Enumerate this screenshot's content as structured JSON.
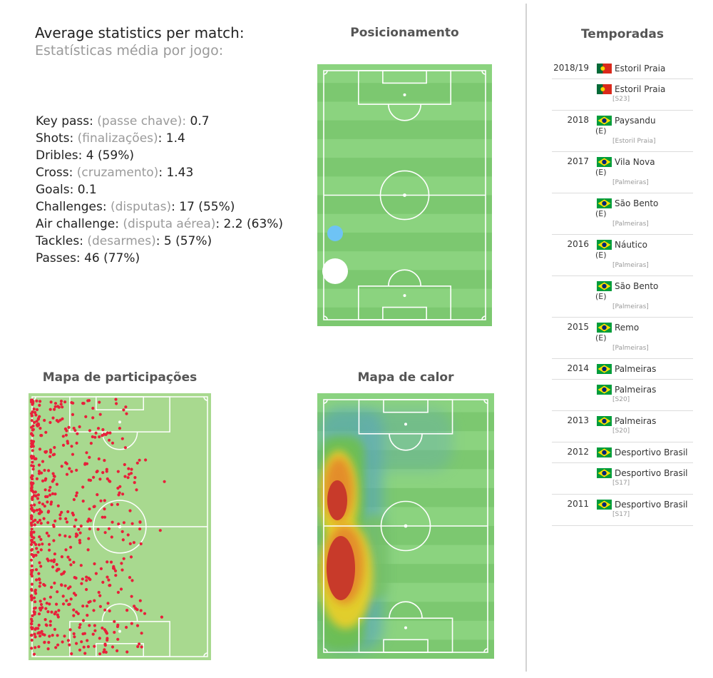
{
  "stats": {
    "title": "Average statistics per match:",
    "subtitle": "Estatísticas média por jogo:",
    "items": [
      {
        "label": "Key pass:",
        "pt": "(passe chave):",
        "value": " 0.7"
      },
      {
        "label": "Shots:",
        "pt": "(finalizações)",
        "value": ": 1.4"
      },
      {
        "label": "Dribles:",
        "pt": "",
        "value": "4 (59%)"
      },
      {
        "label": "Cross:",
        "pt": "(cruzamento)",
        "value": ": 1.43"
      },
      {
        "label": "Goals:",
        "pt": "",
        "value": "0.1"
      },
      {
        "label": "Challenges:",
        "pt": "(disputas)",
        "value": ": 17 (55%)"
      },
      {
        "label": "Air challenge:",
        "pt": "(disputa aérea)",
        "value": ":  2.2 (63%)"
      },
      {
        "label": "Tackles:",
        "pt": "(desarmes)",
        "value": ": 5 (57%)"
      },
      {
        "label": "Passes:",
        "pt": "",
        "value": " 46 (77%)"
      }
    ]
  },
  "sections": {
    "positioning": "Posicionamento",
    "participations": "Mapa de participações",
    "heatmap": "Mapa de calor",
    "seasons": "Temporadas"
  },
  "colors": {
    "pitch_light": "#8bd37f",
    "pitch_dark": "#7cc870",
    "plain_pitch": "#a8d98f",
    "dot_red": "#e8203a",
    "pos_blue": "#6ec3f5",
    "pos_white": "#ffffff",
    "portugal_green": "#046a38",
    "portugal_red": "#da291c",
    "brazil_green": "#009c3b",
    "brazil_yellow": "#ffdf00",
    "brazil_blue": "#002776"
  },
  "seasons": [
    {
      "year": "2018/19",
      "flag": "portugal-flag",
      "team": "Estoril Praia",
      "e": "",
      "note": ""
    },
    {
      "year": "",
      "flag": "portugal-flag",
      "team": "Estoril Praia",
      "e": "",
      "note": "[S23]"
    },
    {
      "year": "2018",
      "flag": "brazil-flag",
      "team": "Paysandu",
      "e": "(E)",
      "note": "[Estoril Praia]"
    },
    {
      "year": "2017",
      "flag": "brazil-flag",
      "team": "Vila Nova",
      "e": "(E)",
      "note": "[Palmeiras]"
    },
    {
      "year": "",
      "flag": "brazil-flag",
      "team": "São Bento",
      "e": "(E)",
      "note": "[Palmeiras]"
    },
    {
      "year": "2016",
      "flag": "brazil-flag",
      "team": "Náutico",
      "e": "(E)",
      "note": "[Palmeiras]"
    },
    {
      "year": "",
      "flag": "brazil-flag",
      "team": "São Bento",
      "e": "(E)",
      "note": "[Palmeiras]"
    },
    {
      "year": "2015",
      "flag": "brazil-flag",
      "team": "Remo",
      "e": "(E)",
      "note": "[Palmeiras]"
    },
    {
      "year": "2014",
      "flag": "brazil-flag",
      "team": "Palmeiras",
      "e": "",
      "note": ""
    },
    {
      "year": "",
      "flag": "brazil-flag",
      "team": "Palmeiras",
      "e": "",
      "note": "[S20]"
    },
    {
      "year": "2013",
      "flag": "brazil-flag",
      "team": "Palmeiras",
      "e": "",
      "note": "[S20]"
    },
    {
      "year": "2012",
      "flag": "brazil-flag",
      "team": "Desportivo Brasil",
      "e": "",
      "note": ""
    },
    {
      "year": "",
      "flag": "brazil-flag",
      "team": "Desportivo Brasil",
      "e": "",
      "note": "[S17]"
    },
    {
      "year": "2011",
      "flag": "brazil-flag",
      "team": "Desportivo Brasil",
      "e": "",
      "note": "[S17]"
    }
  ]
}
